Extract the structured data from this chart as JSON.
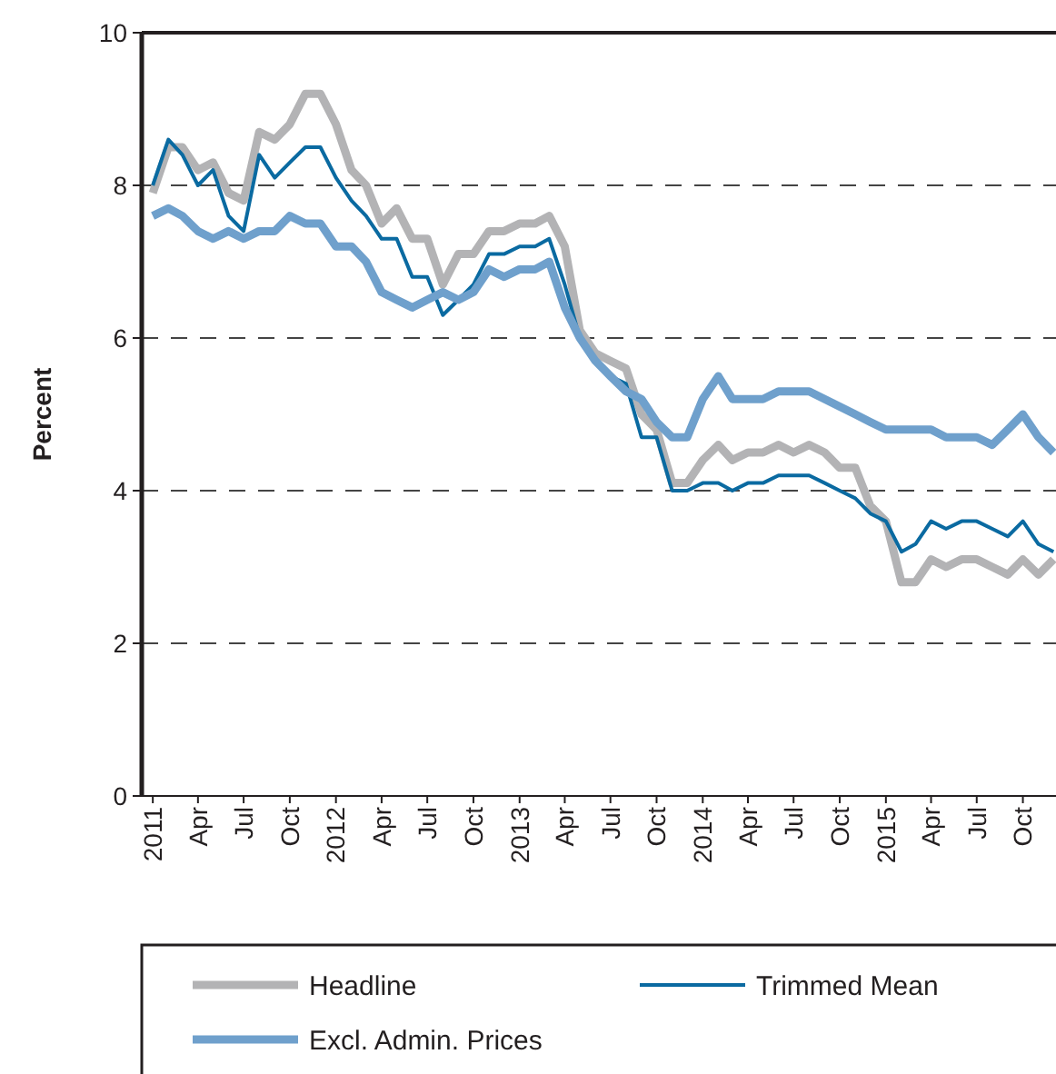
{
  "chart_data": {
    "type": "line",
    "ylabel": "Percent",
    "x": [
      "2011-01",
      "2011-02",
      "2011-03",
      "2011-04",
      "2011-05",
      "2011-06",
      "2011-07",
      "2011-08",
      "2011-09",
      "2011-10",
      "2011-11",
      "2011-12",
      "2012-01",
      "2012-02",
      "2012-03",
      "2012-04",
      "2012-05",
      "2012-06",
      "2012-07",
      "2012-08",
      "2012-09",
      "2012-10",
      "2012-11",
      "2012-12",
      "2013-01",
      "2013-02",
      "2013-03",
      "2013-04",
      "2013-05",
      "2013-06",
      "2013-07",
      "2013-08",
      "2013-09",
      "2013-10",
      "2013-11",
      "2013-12",
      "2014-01",
      "2014-02",
      "2014-03",
      "2014-04",
      "2014-05",
      "2014-06",
      "2014-07",
      "2014-08",
      "2014-09",
      "2014-10",
      "2014-11",
      "2014-12",
      "2015-01",
      "2015-02",
      "2015-03",
      "2015-04",
      "2015-05",
      "2015-06",
      "2015-07",
      "2015-08",
      "2015-09",
      "2015-10",
      "2015-11",
      "2015-12"
    ],
    "series": [
      {
        "name": "Headline",
        "color": "#b3b3b5",
        "values": [
          7.9,
          8.5,
          8.5,
          8.2,
          8.3,
          7.9,
          7.8,
          8.7,
          8.6,
          8.8,
          9.2,
          9.2,
          8.8,
          8.2,
          8.0,
          7.5,
          7.7,
          7.3,
          7.3,
          6.7,
          7.1,
          7.1,
          7.4,
          7.4,
          7.5,
          7.5,
          7.6,
          7.2,
          6.1,
          5.8,
          5.7,
          5.6,
          5.0,
          4.8,
          4.1,
          4.1,
          4.4,
          4.6,
          4.4,
          4.5,
          4.5,
          4.6,
          4.5,
          4.6,
          4.5,
          4.3,
          4.3,
          3.8,
          3.6,
          2.8,
          2.8,
          3.1,
          3.0,
          3.1,
          3.1,
          3.0,
          2.9,
          3.1,
          2.9,
          3.1
        ]
      },
      {
        "name": "Trimmed Mean",
        "color": "#0a6aa1",
        "values": [
          8.0,
          8.6,
          8.4,
          8.0,
          8.2,
          7.6,
          7.4,
          8.4,
          8.1,
          8.3,
          8.5,
          8.5,
          8.1,
          7.8,
          7.6,
          7.3,
          7.3,
          6.8,
          6.8,
          6.3,
          6.5,
          6.7,
          7.1,
          7.1,
          7.2,
          7.2,
          7.3,
          6.7,
          6.0,
          5.7,
          5.5,
          5.4,
          4.7,
          4.7,
          4.0,
          4.0,
          4.1,
          4.1,
          4.0,
          4.1,
          4.1,
          4.2,
          4.2,
          4.2,
          4.1,
          4.0,
          3.9,
          3.7,
          3.6,
          3.2,
          3.3,
          3.6,
          3.5,
          3.6,
          3.6,
          3.5,
          3.4,
          3.6,
          3.3,
          3.2
        ]
      },
      {
        "name": "Excl. Admin. Prices",
        "color": "#6fa0cc",
        "values": [
          7.6,
          7.7,
          7.6,
          7.4,
          7.3,
          7.4,
          7.3,
          7.4,
          7.4,
          7.6,
          7.5,
          7.5,
          7.2,
          7.2,
          7.0,
          6.6,
          6.5,
          6.4,
          6.5,
          6.6,
          6.5,
          6.6,
          6.9,
          6.8,
          6.9,
          6.9,
          7.0,
          6.4,
          6.0,
          5.7,
          5.5,
          5.3,
          5.2,
          4.9,
          4.7,
          4.7,
          5.2,
          5.5,
          5.2,
          5.2,
          5.2,
          5.3,
          5.3,
          5.3,
          5.2,
          5.1,
          5.0,
          4.9,
          4.8,
          4.8,
          4.8,
          4.8,
          4.7,
          4.7,
          4.7,
          4.6,
          4.8,
          5.0,
          4.7,
          4.5
        ]
      }
    ],
    "xlim": [
      "2010-12-10",
      "2015-12-06"
    ],
    "xticks": [
      {
        "value": "2011-01",
        "label": "2011"
      },
      {
        "value": "2011-04",
        "label": "Apr"
      },
      {
        "value": "2011-07",
        "label": "Jul"
      },
      {
        "value": "2011-10",
        "label": "Oct"
      },
      {
        "value": "2012-01",
        "label": "2012"
      },
      {
        "value": "2012-04",
        "label": "Apr"
      },
      {
        "value": "2012-07",
        "label": "Jul"
      },
      {
        "value": "2012-10",
        "label": "Oct"
      },
      {
        "value": "2013-01",
        "label": "2013"
      },
      {
        "value": "2013-04",
        "label": "Apr"
      },
      {
        "value": "2013-07",
        "label": "Jul"
      },
      {
        "value": "2013-10",
        "label": "Oct"
      },
      {
        "value": "2014-01",
        "label": "2014"
      },
      {
        "value": "2014-04",
        "label": "Apr"
      },
      {
        "value": "2014-07",
        "label": "Jul"
      },
      {
        "value": "2014-10",
        "label": "Oct"
      },
      {
        "value": "2015-01",
        "label": "2015"
      },
      {
        "value": "2015-04",
        "label": "Apr"
      },
      {
        "value": "2015-07",
        "label": "Jul"
      },
      {
        "value": "2015-10",
        "label": "Oct"
      }
    ],
    "ylim": [
      0,
      10
    ],
    "yticks": [
      0,
      2,
      4,
      6,
      8,
      10
    ],
    "grid": "y",
    "legend": "bottom",
    "line_style": "solid",
    "marker": "none"
  }
}
